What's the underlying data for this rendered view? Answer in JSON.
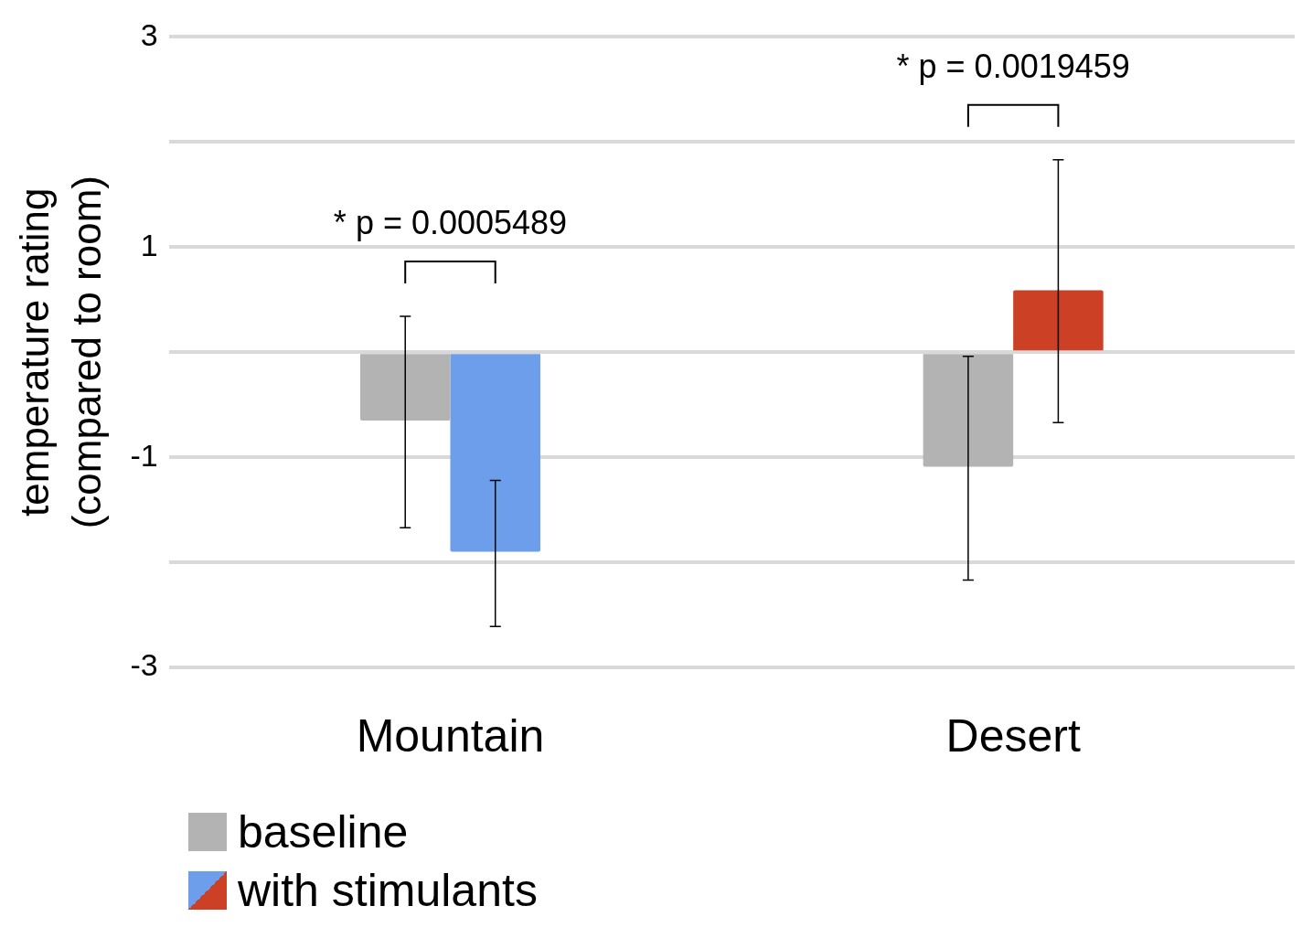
{
  "chart_data": {
    "type": "bar",
    "categories": [
      "Mountain",
      "Desert"
    ],
    "ylabel": "temperature rating\n(compared to room)",
    "ylim": [
      -3,
      3
    ],
    "yticks": [
      -3,
      {
        "value": -2,
        "label": null
      },
      -1,
      {
        "value": 0,
        "label": null
      },
      1,
      {
        "value": 2,
        "label": null
      },
      3
    ],
    "grid": "y",
    "legend": "bottom",
    "series": [
      {
        "name": "baseline",
        "color": "#b3b3b3",
        "values": [
          -0.65,
          -1.09
        ],
        "errors": [
          [
            -1.67,
            0.34
          ],
          [
            -2.17,
            -0.04
          ]
        ]
      },
      {
        "name": "with stimulants",
        "colors": [
          "#6d9eeb",
          "#cc4125"
        ],
        "values": [
          -1.9,
          0.59
        ],
        "errors": [
          [
            -2.61,
            -1.22
          ],
          [
            -0.67,
            1.83
          ]
        ]
      }
    ],
    "annotations": [
      "* p = 0.0005489",
      "* p = 0.0019459"
    ]
  }
}
